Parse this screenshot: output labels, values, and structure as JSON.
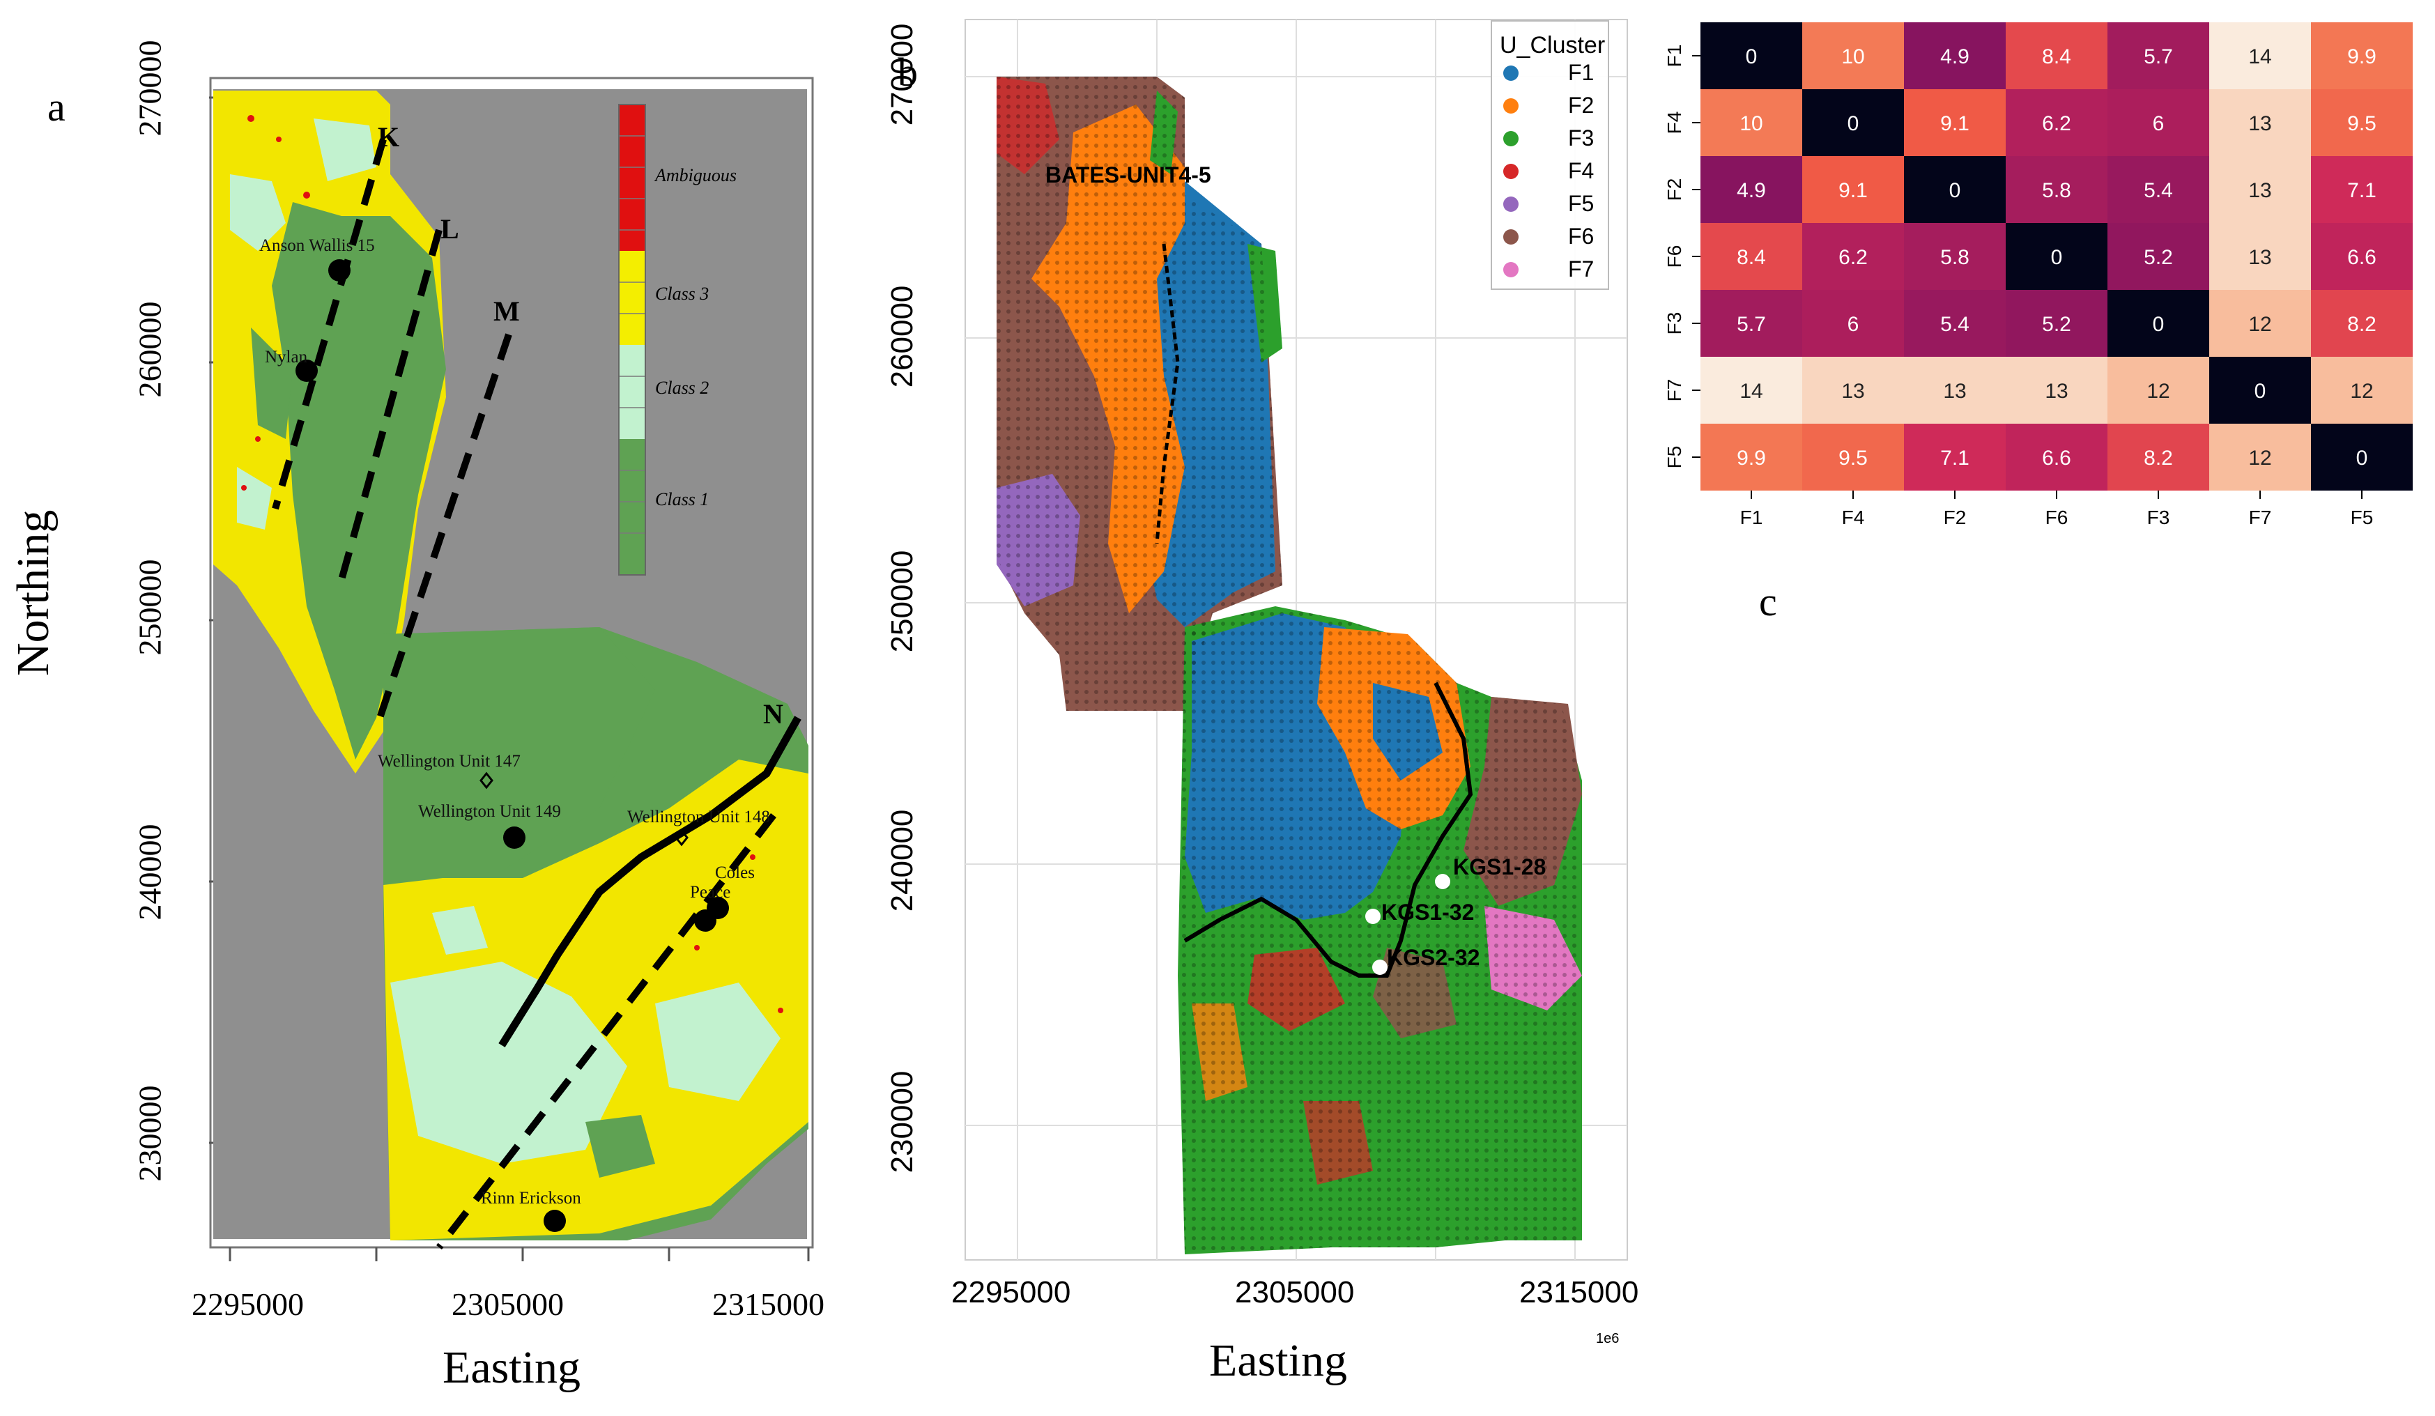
{
  "panel_a": {
    "letter": "a",
    "ylabel": "Northing",
    "xlabel": "Easting",
    "yticks": [
      "270000",
      "260000",
      "250000",
      "240000",
      "230000"
    ],
    "xticks": [
      "2295000",
      "2305000",
      "2315000"
    ],
    "legend": [
      "Ambiguous",
      "Class 3",
      "Class 2",
      "Class 1"
    ],
    "fault_labels": [
      "K",
      "L",
      "M",
      "N"
    ],
    "wells": [
      "Anson Wallis 15",
      "Nylan",
      "Wellington Unit 147",
      "Wellington Unit 149",
      "Wellington Unit 148",
      "Coles",
      "Peace",
      "Rinn Erickson"
    ],
    "colors": {
      "ambiguous": "#e01010",
      "class3": "#f4ee00",
      "class2": "#c2f2cf",
      "class1": "#5fa253",
      "background": "#8f8f8f"
    }
  },
  "panel_b": {
    "letter": "b",
    "xlabel": "Easting",
    "yticks": [
      "270000",
      "260000",
      "250000",
      "240000",
      "230000"
    ],
    "xticks": [
      "2295000",
      "2305000",
      "2315000"
    ],
    "offset_text": "1e6",
    "legend_title": "U_Cluster",
    "legend_items": [
      {
        "label": "F1",
        "color": "#1f77b4"
      },
      {
        "label": "F2",
        "color": "#ff7f0e"
      },
      {
        "label": "F3",
        "color": "#2ca02c"
      },
      {
        "label": "F4",
        "color": "#d62728"
      },
      {
        "label": "F5",
        "color": "#9467bd"
      },
      {
        "label": "F6",
        "color": "#8c564b"
      },
      {
        "label": "F7",
        "color": "#e377c2"
      }
    ],
    "annotations": [
      "BATES-UNIT4-5",
      "KGS1-28",
      "KGS1-32",
      "KGS2-32"
    ]
  },
  "panel_c": {
    "letter": "c"
  },
  "chart_data": {
    "type": "heatmap",
    "rows": [
      "F1",
      "F4",
      "F2",
      "F6",
      "F3",
      "F7",
      "F5"
    ],
    "columns": [
      "F1",
      "F4",
      "F2",
      "F6",
      "F3",
      "F7",
      "F5"
    ],
    "values": [
      [
        0,
        10,
        4.9,
        8.4,
        5.7,
        14,
        9.9
      ],
      [
        10,
        0,
        9.1,
        6.2,
        6,
        13,
        9.5
      ],
      [
        4.9,
        9.1,
        0,
        5.8,
        5.4,
        13,
        7.1
      ],
      [
        8.4,
        6.2,
        5.8,
        0,
        5.2,
        13,
        6.6
      ],
      [
        5.7,
        6,
        5.4,
        5.2,
        0,
        12,
        8.2
      ],
      [
        14,
        13,
        13,
        13,
        12,
        0,
        12
      ],
      [
        9.9,
        9.5,
        7.1,
        6.6,
        8.2,
        12,
        0
      ]
    ],
    "value_labels": [
      [
        "0",
        "10",
        "4.9",
        "8.4",
        "5.7",
        "14",
        "9.9"
      ],
      [
        "10",
        "0",
        "9.1",
        "6.2",
        "6",
        "13",
        "9.5"
      ],
      [
        "4.9",
        "9.1",
        "0",
        "5.8",
        "5.4",
        "13",
        "7.1"
      ],
      [
        "8.4",
        "6.2",
        "5.8",
        "0",
        "5.2",
        "13",
        "6.6"
      ],
      [
        "5.7",
        "6",
        "5.4",
        "5.2",
        "0",
        "12",
        "8.2"
      ],
      [
        "14",
        "13",
        "13",
        "13",
        "12",
        "0",
        "12"
      ],
      [
        "9.9",
        "9.5",
        "7.1",
        "6.6",
        "8.2",
        "12",
        "0"
      ]
    ],
    "vmin": 0,
    "vmax": 14
  }
}
